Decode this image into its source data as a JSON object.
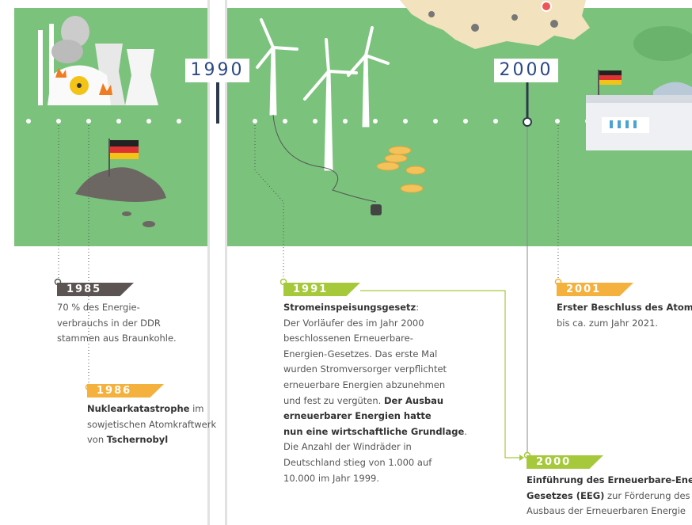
{
  "decades": [
    "1990",
    "2000"
  ],
  "entries": [
    {
      "year": "1985",
      "color": "#5b5452",
      "lines": [
        [
          {
            "text": "70 % des Energie-",
            "bold": false
          }
        ],
        [
          {
            "text": "verbrauchs in der DDR",
            "bold": false
          }
        ],
        [
          {
            "text": "stammen aus Braunkohle.",
            "bold": false
          }
        ]
      ]
    },
    {
      "year": "1986",
      "color": "#f5b13d",
      "lines": [
        [
          {
            "text": "Nuklearkatastrophe",
            "bold": true
          },
          {
            "text": " im",
            "bold": false
          }
        ],
        [
          {
            "text": "sowjetischen Atomkraftwerk",
            "bold": false
          }
        ],
        [
          {
            "text": "von ",
            "bold": false
          },
          {
            "text": "Tschernobyl",
            "bold": true
          }
        ]
      ]
    },
    {
      "year": "1991",
      "color": "#a6c93c",
      "lines": [
        [
          {
            "text": "Stromeinspeisungsgesetz",
            "bold": true
          },
          {
            "text": ":",
            "bold": false
          }
        ],
        [
          {
            "text": "Der Vorläufer des im Jahr 2000",
            "bold": false
          }
        ],
        [
          {
            "text": "beschlossenen Erneuerbare-",
            "bold": false
          }
        ],
        [
          {
            "text": "Energien-Gesetzes. Das erste Mal",
            "bold": false
          }
        ],
        [
          {
            "text": "wurden Stromversorger verpflichtet",
            "bold": false
          }
        ],
        [
          {
            "text": "erneuerbare Energien abzunehmen",
            "bold": false
          }
        ],
        [
          {
            "text": "und fest zu vergüten. ",
            "bold": false
          },
          {
            "text": "Der Ausbau",
            "bold": true
          }
        ],
        [
          {
            "text": "erneuerbarer Energien hatte",
            "bold": true
          }
        ],
        [
          {
            "text": "nun eine wirtschaftliche Grundlage",
            "bold": true
          },
          {
            "text": ".",
            "bold": false
          }
        ],
        [
          {
            "text": "Die Anzahl der Windräder in",
            "bold": false
          }
        ],
        [
          {
            "text": "Deutschland stieg von 1.000 auf",
            "bold": false
          }
        ],
        [
          {
            "text": "10.000 im Jahr 1999.",
            "bold": false
          }
        ]
      ]
    },
    {
      "year": "2001",
      "color": "#f5b13d",
      "lines": [
        [
          {
            "text": "Erster Beschluss des Atoma",
            "bold": true
          }
        ],
        [
          {
            "text": "bis ca. zum Jahr 2021.",
            "bold": false
          }
        ]
      ]
    },
    {
      "year": "2000",
      "color": "#a6c93c",
      "lines": [
        [
          {
            "text": "Einführung des Erneuerbare-Energ",
            "bold": true
          }
        ],
        [
          {
            "text": "Gesetzes (EEG)",
            "bold": true
          },
          {
            "text": " zur Förderung des",
            "bold": false
          }
        ],
        [
          {
            "text": "Ausbaus der Erneuerbaren Energie",
            "bold": false
          }
        ]
      ]
    }
  ]
}
